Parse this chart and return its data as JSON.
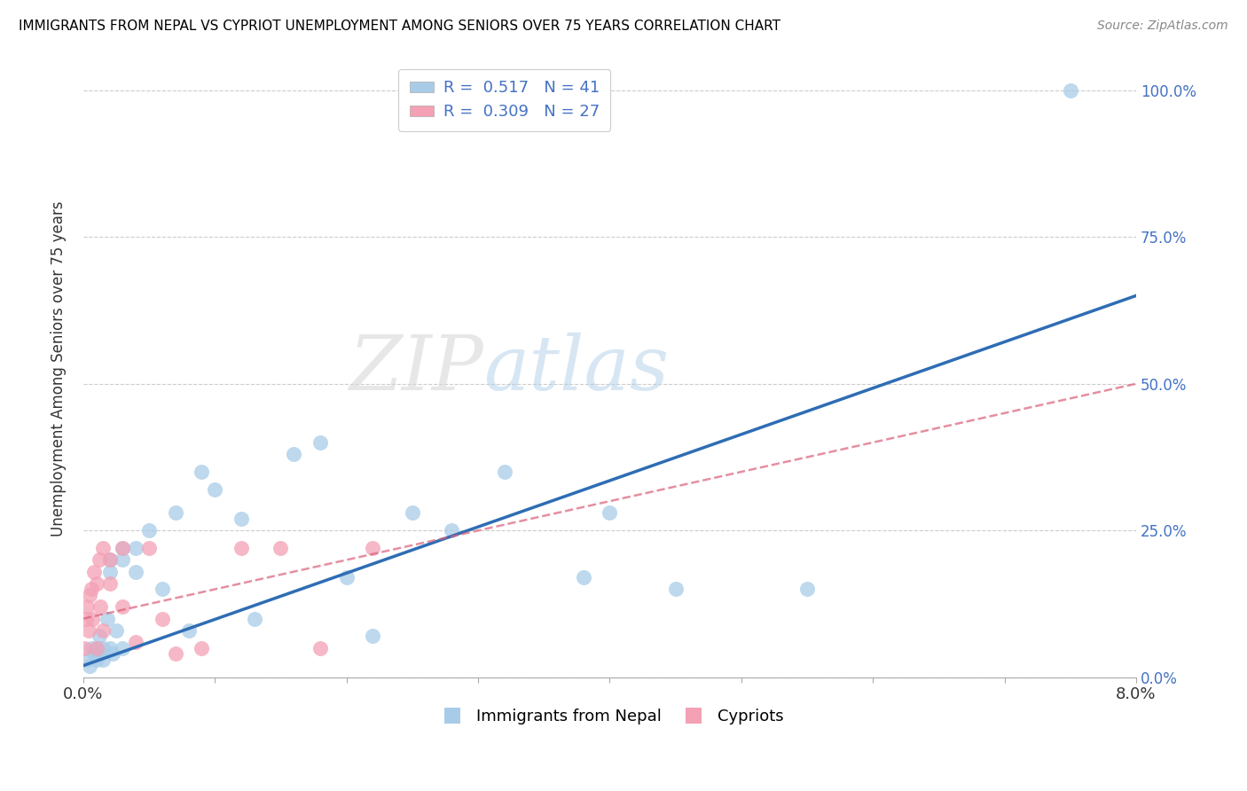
{
  "title": "IMMIGRANTS FROM NEPAL VS CYPRIOT UNEMPLOYMENT AMONG SENIORS OVER 75 YEARS CORRELATION CHART",
  "source": "Source: ZipAtlas.com",
  "ylabel": "Unemployment Among Seniors over 75 years",
  "yticks_labels": [
    "0.0%",
    "25.0%",
    "50.0%",
    "75.0%",
    "100.0%"
  ],
  "ytick_vals": [
    0.0,
    0.25,
    0.5,
    0.75,
    1.0
  ],
  "xtick_vals": [
    0.0,
    0.01,
    0.02,
    0.03,
    0.04,
    0.05,
    0.06,
    0.07,
    0.08
  ],
  "xmin": 0.0,
  "xmax": 0.08,
  "ymin": 0.0,
  "ymax": 1.05,
  "r_nepal": 0.517,
  "n_nepal": 41,
  "r_cypriot": 0.309,
  "n_cypriot": 27,
  "color_nepal": "#a8cce8",
  "color_cypriot": "#f4a0b5",
  "color_nepal_line": "#2e6db4",
  "color_cypriot_line": "#d9607a",
  "nepal_x": [
    0.0003,
    0.0005,
    0.0006,
    0.0008,
    0.001,
    0.001,
    0.0012,
    0.0013,
    0.0015,
    0.0015,
    0.0018,
    0.002,
    0.002,
    0.002,
    0.0022,
    0.0025,
    0.003,
    0.003,
    0.003,
    0.004,
    0.004,
    0.005,
    0.006,
    0.007,
    0.008,
    0.009,
    0.01,
    0.012,
    0.013,
    0.016,
    0.018,
    0.02,
    0.022,
    0.025,
    0.028,
    0.032,
    0.038,
    0.04,
    0.045,
    0.055,
    0.075
  ],
  "nepal_y": [
    0.03,
    0.02,
    0.05,
    0.04,
    0.05,
    0.03,
    0.07,
    0.04,
    0.05,
    0.03,
    0.1,
    0.05,
    0.18,
    0.2,
    0.04,
    0.08,
    0.05,
    0.22,
    0.2,
    0.22,
    0.18,
    0.25,
    0.15,
    0.28,
    0.08,
    0.35,
    0.32,
    0.27,
    0.1,
    0.38,
    0.4,
    0.17,
    0.07,
    0.28,
    0.25,
    0.35,
    0.17,
    0.28,
    0.15,
    0.15,
    1.0
  ],
  "cypriot_x": [
    0.0001,
    0.0002,
    0.0003,
    0.0004,
    0.0005,
    0.0006,
    0.0007,
    0.0008,
    0.001,
    0.001,
    0.0012,
    0.0013,
    0.0015,
    0.0015,
    0.002,
    0.002,
    0.003,
    0.003,
    0.004,
    0.005,
    0.006,
    0.007,
    0.009,
    0.012,
    0.015,
    0.018,
    0.022
  ],
  "cypriot_y": [
    0.05,
    0.1,
    0.12,
    0.08,
    0.14,
    0.15,
    0.1,
    0.18,
    0.16,
    0.05,
    0.2,
    0.12,
    0.22,
    0.08,
    0.2,
    0.16,
    0.22,
    0.12,
    0.06,
    0.22,
    0.1,
    0.04,
    0.05,
    0.22,
    0.22,
    0.05,
    0.22
  ],
  "nepal_line_x0": 0.0,
  "nepal_line_y0": 0.02,
  "nepal_line_x1": 0.08,
  "nepal_line_y1": 0.65,
  "cypriot_line_x0": 0.0,
  "cypriot_line_y0": 0.1,
  "cypriot_line_x1": 0.08,
  "cypriot_line_y1": 0.5
}
